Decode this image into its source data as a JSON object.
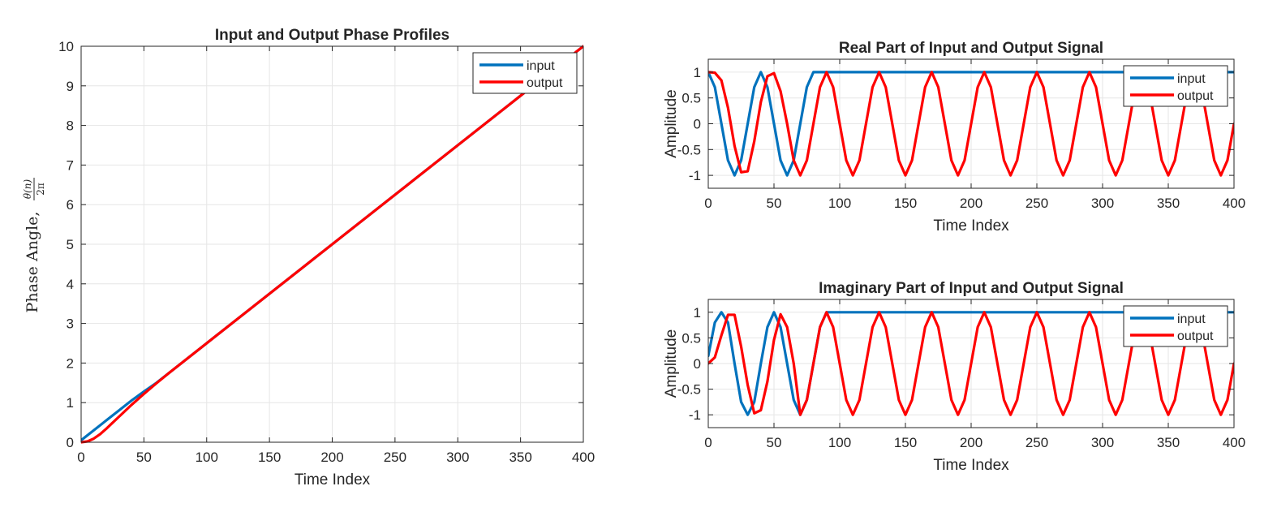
{
  "chart_data": [
    {
      "id": "phase",
      "type": "line",
      "title": "Input and Output Phase Profiles",
      "xlabel": "Time Index",
      "ylabel": "Phase Angle, ",
      "ylabel_math": {
        "num": "θ(n)",
        "den": "2π"
      },
      "xlim": [
        0,
        400
      ],
      "ylim": [
        0,
        10
      ],
      "xticks": [
        0,
        50,
        100,
        150,
        200,
        250,
        300,
        350,
        400
      ],
      "yticks": [
        0,
        1,
        2,
        3,
        4,
        5,
        6,
        7,
        8,
        9,
        10
      ],
      "grid": true,
      "legend": "top-right",
      "series": [
        {
          "name": "input",
          "color": "#0072BD",
          "x": [
            0,
            10,
            20,
            30,
            40,
            50,
            60,
            70,
            100,
            200,
            300,
            400
          ],
          "y": [
            0.05,
            0.3,
            0.55,
            0.8,
            1.05,
            1.28,
            1.5,
            1.75,
            2.5,
            5.0,
            7.5,
            10.0
          ]
        },
        {
          "name": "output",
          "color": "#FF0000",
          "x": [
            0,
            5,
            10,
            15,
            20,
            25,
            30,
            40,
            50,
            60,
            70,
            100,
            200,
            300,
            400
          ],
          "y": [
            0.0,
            0.02,
            0.09,
            0.2,
            0.34,
            0.49,
            0.64,
            0.94,
            1.22,
            1.49,
            1.75,
            2.5,
            5.0,
            7.5,
            10.0
          ]
        }
      ]
    },
    {
      "id": "real",
      "type": "line",
      "title": "Real Part of Input and Output Signal",
      "xlabel": "Time Index",
      "ylabel": "Amplitude",
      "xlim": [
        0,
        400
      ],
      "ylim": [
        -1.25,
        1.25
      ],
      "xticks": [
        0,
        50,
        100,
        150,
        200,
        250,
        300,
        350,
        400
      ],
      "yticks": [
        -1,
        -0.5,
        0,
        0.5,
        1
      ],
      "grid": true,
      "legend": "top-right",
      "series": [
        {
          "name": "input",
          "color": "#0072BD",
          "x": [
            0,
            5,
            10,
            15,
            20,
            25,
            30,
            35,
            40,
            45,
            50,
            55,
            60,
            65,
            70,
            75,
            80,
            400
          ],
          "y": [
            1.0,
            0.71,
            0.0,
            -0.71,
            -1.0,
            -0.71,
            0.0,
            0.71,
            1.0,
            0.71,
            0.0,
            -0.71,
            -1.0,
            -0.71,
            0.0,
            0.71,
            1.0,
            1.0
          ]
        },
        {
          "name": "output",
          "color": "#FF0000",
          "x": [
            0,
            5,
            10,
            15,
            20,
            25,
            30,
            35,
            40,
            45,
            50,
            55,
            60,
            65,
            70,
            75,
            80,
            85,
            90,
            95,
            100,
            105,
            110,
            115,
            120,
            125,
            130,
            135,
            140,
            145,
            150,
            155,
            160,
            165,
            170,
            175,
            180,
            185,
            190,
            195,
            200,
            205,
            210,
            215,
            220,
            225,
            230,
            235,
            240,
            245,
            250,
            255,
            260,
            265,
            270,
            275,
            280,
            285,
            290,
            295,
            300,
            305,
            310,
            315,
            320,
            325,
            330,
            335,
            340,
            345,
            350,
            355,
            360,
            365,
            370,
            375,
            380,
            385,
            390,
            395,
            400
          ],
          "y": [
            1.0,
            0.99,
            0.84,
            0.31,
            -0.43,
            -0.94,
            -0.92,
            -0.34,
            0.42,
            0.92,
            0.98,
            0.63,
            0.0,
            -0.71,
            -1.0,
            -0.71,
            0.0,
            0.71,
            1.0,
            0.71,
            0.0,
            -0.71,
            -1.0,
            -0.71,
            0.0,
            0.71,
            1.0,
            0.71,
            0.0,
            -0.71,
            -1.0,
            -0.71,
            0.0,
            0.71,
            1.0,
            0.71,
            0.0,
            -0.71,
            -1.0,
            -0.71,
            0.0,
            0.71,
            1.0,
            0.71,
            0.0,
            -0.71,
            -1.0,
            -0.71,
            0.0,
            0.71,
            1.0,
            0.71,
            0.0,
            -0.71,
            -1.0,
            -0.71,
            0.0,
            0.71,
            1.0,
            0.71,
            0.0,
            -0.71,
            -1.0,
            -0.71,
            0.0,
            0.71,
            1.0,
            0.71,
            0.0,
            -0.71,
            -1.0,
            -0.71,
            0.0,
            0.71,
            1.0,
            0.71,
            0.0,
            -0.71,
            -1.0,
            -0.71,
            0.0
          ]
        }
      ]
    },
    {
      "id": "imag",
      "type": "line",
      "title": "Imaginary Part of Input and Output Signal",
      "xlabel": "Time Index",
      "ylabel": "Amplitude",
      "xlim": [
        0,
        400
      ],
      "ylim": [
        -1.25,
        1.25
      ],
      "xticks": [
        0,
        50,
        100,
        150,
        200,
        250,
        300,
        350,
        400
      ],
      "yticks": [
        -1,
        -0.5,
        0,
        0.5,
        1
      ],
      "grid": true,
      "legend": "top-right",
      "series": [
        {
          "name": "input",
          "color": "#0072BD",
          "x": [
            0,
            5,
            10,
            15,
            20,
            25,
            30,
            35,
            40,
            45,
            50,
            55,
            60,
            65,
            70,
            75,
            80,
            85,
            90,
            400
          ],
          "y": [
            0.15,
            0.8,
            1.0,
            0.8,
            0.0,
            -0.75,
            -1.0,
            -0.75,
            0.0,
            0.71,
            1.0,
            0.71,
            0.0,
            -0.71,
            -1.0,
            -0.71,
            0.0,
            0.71,
            1.0,
            1.0
          ]
        },
        {
          "name": "output",
          "color": "#FF0000",
          "x": [
            0,
            5,
            10,
            15,
            20,
            25,
            30,
            35,
            40,
            45,
            50,
            55,
            60,
            65,
            70,
            75,
            80,
            85,
            90,
            95,
            100,
            105,
            110,
            115,
            120,
            125,
            130,
            135,
            140,
            145,
            150,
            155,
            160,
            165,
            170,
            175,
            180,
            185,
            190,
            195,
            200,
            205,
            210,
            215,
            220,
            225,
            230,
            235,
            240,
            245,
            250,
            255,
            260,
            265,
            270,
            275,
            280,
            285,
            290,
            295,
            300,
            305,
            310,
            315,
            320,
            325,
            330,
            335,
            340,
            345,
            350,
            355,
            360,
            365,
            370,
            375,
            380,
            385,
            390,
            395,
            400
          ],
          "y": [
            0.0,
            0.12,
            0.55,
            0.95,
            0.95,
            0.33,
            -0.42,
            -0.97,
            -0.91,
            -0.35,
            0.46,
            0.96,
            0.71,
            0.0,
            -1.0,
            -0.71,
            0.0,
            0.71,
            1.0,
            0.71,
            0.0,
            -0.71,
            -1.0,
            -0.71,
            0.0,
            0.71,
            1.0,
            0.71,
            0.0,
            -0.71,
            -1.0,
            -0.71,
            0.0,
            0.71,
            1.0,
            0.71,
            0.0,
            -0.71,
            -1.0,
            -0.71,
            0.0,
            0.71,
            1.0,
            0.71,
            0.0,
            -0.71,
            -1.0,
            -0.71,
            0.0,
            0.71,
            1.0,
            0.71,
            0.0,
            -0.71,
            -1.0,
            -0.71,
            0.0,
            0.71,
            1.0,
            0.71,
            0.0,
            -0.71,
            -1.0,
            -0.71,
            0.0,
            0.71,
            1.0,
            0.71,
            0.0,
            -0.71,
            -1.0,
            -0.71,
            0.0,
            0.71,
            1.0,
            0.71,
            0.0,
            -0.71,
            -1.0,
            -0.71,
            0.0
          ]
        }
      ]
    }
  ]
}
